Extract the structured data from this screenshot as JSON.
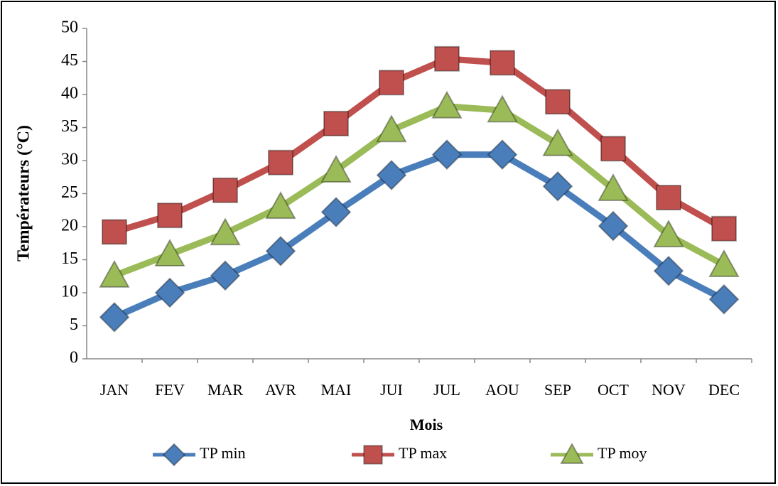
{
  "chart_data": {
    "type": "line",
    "x_label": "Mois",
    "y_label": "Températeurs (°C)",
    "categories": [
      "JAN",
      "FEV",
      "MAR",
      "AVR",
      "MAI",
      "JUI",
      "JUL",
      "AOU",
      "SEP",
      "OCT",
      "NOV",
      "DEC"
    ],
    "series": [
      {
        "name": "TP min",
        "color": "#4a7ebb",
        "marker": "diamond",
        "values": [
          6.3,
          10,
          12.6,
          16.3,
          22.2,
          27.8,
          30.9,
          30.9,
          26.1,
          20.1,
          13.3,
          9.0
        ]
      },
      {
        "name": "TP max",
        "color": "#c0504d",
        "marker": "square",
        "values": [
          19.2,
          21.7,
          25.5,
          29.7,
          35.6,
          41.8,
          45.4,
          44.8,
          38.9,
          31.8,
          24.4,
          19.7
        ]
      },
      {
        "name": "TP moy",
        "color": "#9bbb59",
        "marker": "triangle",
        "values": [
          12.6,
          15.8,
          19.0,
          23.0,
          28.5,
          34.6,
          38.2,
          37.6,
          32.5,
          25.7,
          18.7,
          14.2
        ]
      }
    ],
    "ylim": [
      0,
      50
    ],
    "yticks": [
      0,
      5,
      10,
      15,
      20,
      25,
      30,
      35,
      40,
      45,
      50
    ],
    "grid": false,
    "legend": "bottom"
  }
}
